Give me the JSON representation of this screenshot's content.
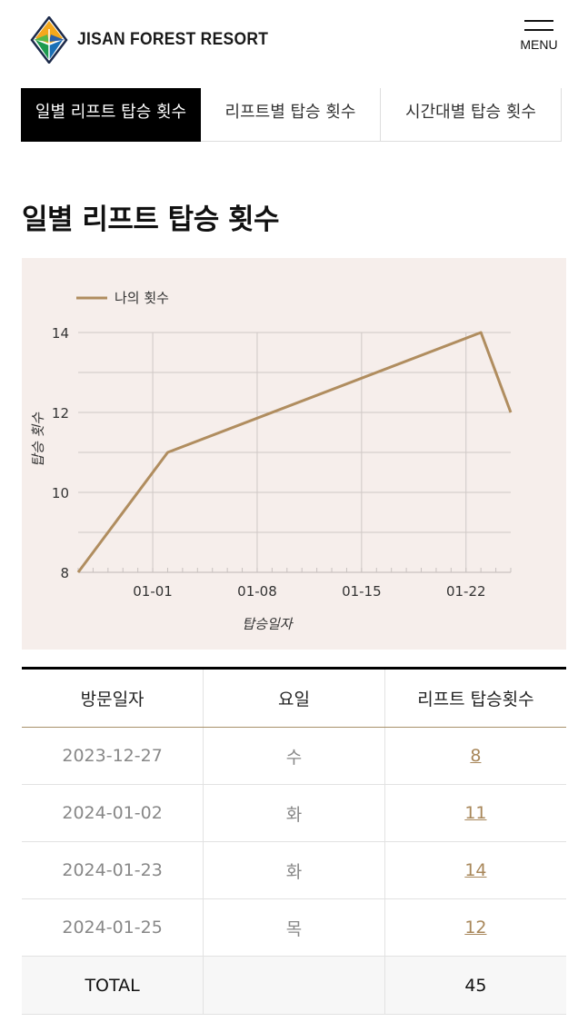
{
  "header": {
    "logo_text": "JISAN FOREST RESORT",
    "menu_label": "MENU"
  },
  "tabs": [
    {
      "label": "일별 리프트 탑승 횟수",
      "active": true
    },
    {
      "label": "리프트별 탑승 횟수",
      "active": false
    },
    {
      "label": "시간대별 탑승 횟수",
      "active": false
    }
  ],
  "section_title": "일별 리프트 탑승 횟수",
  "chart_data": {
    "type": "line",
    "xlabel": "탑승일자",
    "ylabel": "탑승 횟수",
    "ylim": [
      8,
      14
    ],
    "y_ticks": [
      8,
      10,
      12,
      14
    ],
    "x_ticks": [
      "01-01",
      "01-08",
      "01-15",
      "01-22"
    ],
    "legend_position": "top-left",
    "grid": true,
    "series": [
      {
        "name": "나의 횟수",
        "color": "#b08d5f",
        "points": [
          {
            "x": "2023-12-27",
            "y": 8
          },
          {
            "x": "2024-01-02",
            "y": 11
          },
          {
            "x": "2024-01-23",
            "y": 14
          },
          {
            "x": "2024-01-25",
            "y": 12
          }
        ]
      }
    ]
  },
  "table": {
    "headers": [
      "방문일자",
      "요일",
      "리프트 탑승횟수"
    ],
    "rows": [
      {
        "date": "2023-12-27",
        "day": "수",
        "count": "8"
      },
      {
        "date": "2024-01-02",
        "day": "화",
        "count": "11"
      },
      {
        "date": "2024-01-23",
        "day": "화",
        "count": "14"
      },
      {
        "date": "2024-01-25",
        "day": "목",
        "count": "12"
      }
    ],
    "total": {
      "label": "TOTAL",
      "day": "",
      "count": "45"
    }
  },
  "colors": {
    "accent": "#b08d5f",
    "chart_bg": "#f6eeeb",
    "active_tab": "#000000"
  }
}
